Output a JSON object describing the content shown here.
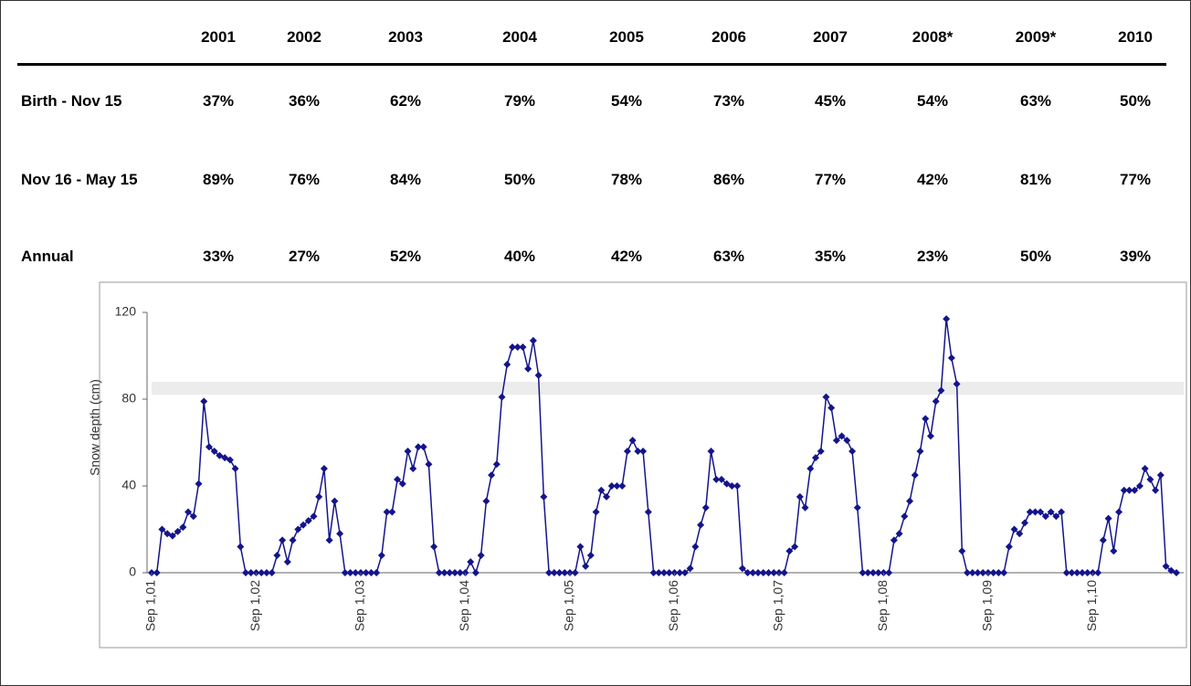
{
  "table": {
    "header": [
      "2001",
      "2002",
      "2003",
      "2004",
      "2005",
      "2006",
      "2007",
      "2008*",
      "2009*",
      "2010"
    ],
    "rows": [
      [
        "Birth - Nov 15",
        "37%",
        "36%",
        "62%",
        "79%",
        "54%",
        "73%",
        "45%",
        "54%",
        "63%",
        "50%"
      ],
      [
        "Nov 16 - May 15",
        "89%",
        "76%",
        "84%",
        "50%",
        "78%",
        "86%",
        "77%",
        "42%",
        "81%",
        "77%"
      ],
      [
        "Annual",
        "33%",
        "27%",
        "52%",
        "40%",
        "42%",
        "63%",
        "35%",
        "23%",
        "50%",
        "39%"
      ]
    ]
  },
  "chart_data": {
    "type": "line",
    "y_label": "Snow depth (cm)",
    "color": "#14148c",
    "ylim": [
      0,
      120
    ],
    "yticks": [
      0,
      40,
      80,
      120
    ],
    "band": [
      82,
      88
    ],
    "values": [
      0,
      0,
      20,
      18,
      17,
      19,
      21,
      28,
      26,
      41,
      79,
      58,
      56,
      54,
      53,
      52,
      48,
      12,
      0,
      0,
      0,
      0,
      0,
      0,
      8,
      15,
      5,
      15,
      20,
      22,
      24,
      26,
      35,
      48,
      15,
      33,
      18,
      0,
      0,
      0,
      0,
      0,
      0,
      0,
      8,
      28,
      28,
      43,
      41,
      56,
      48,
      58,
      58,
      50,
      12,
      0,
      0,
      0,
      0,
      0,
      0,
      5,
      0,
      8,
      33,
      45,
      50,
      81,
      96,
      104,
      104,
      104,
      94,
      107,
      91,
      35,
      0,
      0,
      0,
      0,
      0,
      0,
      12,
      3,
      8,
      28,
      38,
      35,
      40,
      40,
      40,
      56,
      61,
      56,
      56,
      28,
      0,
      0,
      0,
      0,
      0,
      0,
      0,
      2,
      12,
      22,
      30,
      56,
      43,
      43,
      41,
      40,
      40,
      2,
      0,
      0,
      0,
      0,
      0,
      0,
      0,
      0,
      10,
      12,
      35,
      30,
      48,
      53,
      56,
      81,
      76,
      61,
      63,
      61,
      56,
      30,
      0,
      0,
      0,
      0,
      0,
      0,
      15,
      18,
      26,
      33,
      45,
      56,
      71,
      63,
      79,
      84,
      117,
      99,
      87,
      10,
      0,
      0,
      0,
      0,
      0,
      0,
      0,
      0,
      12,
      20,
      18,
      23,
      28,
      28,
      28,
      26,
      28,
      26,
      28,
      0,
      0,
      0,
      0,
      0,
      0,
      0,
      15,
      25,
      10,
      28,
      38,
      38,
      38,
      40,
      48,
      43,
      38,
      45,
      3,
      1,
      0
    ],
    "categories": [
      "Sep 1,01",
      null,
      null,
      null,
      null,
      null,
      null,
      null,
      null,
      null,
      null,
      null,
      null,
      null,
      null,
      null,
      null,
      null,
      null,
      null,
      "Sep 1,02",
      null,
      null,
      null,
      null,
      null,
      null,
      null,
      null,
      null,
      null,
      null,
      null,
      null,
      null,
      null,
      null,
      null,
      null,
      null,
      "Sep 1,03",
      null,
      null,
      null,
      null,
      null,
      null,
      null,
      null,
      null,
      null,
      null,
      null,
      null,
      null,
      null,
      null,
      null,
      null,
      null,
      "Sep 1,04",
      null,
      null,
      null,
      null,
      null,
      null,
      null,
      null,
      null,
      null,
      null,
      null,
      null,
      null,
      null,
      null,
      null,
      null,
      null,
      "Sep 1,05",
      null,
      null,
      null,
      null,
      null,
      null,
      null,
      null,
      null,
      null,
      null,
      null,
      null,
      null,
      null,
      null,
      null,
      null,
      null,
      "Sep 1,06",
      null,
      null,
      null,
      null,
      null,
      null,
      null,
      null,
      null,
      null,
      null,
      null,
      null,
      null,
      null,
      null,
      null,
      null,
      null,
      "Sep 1,07",
      null,
      null,
      null,
      null,
      null,
      null,
      null,
      null,
      null,
      null,
      null,
      null,
      null,
      null,
      null,
      null,
      null,
      null,
      null,
      "Sep 1,08",
      null,
      null,
      null,
      null,
      null,
      null,
      null,
      null,
      null,
      null,
      null,
      null,
      null,
      null,
      null,
      null,
      null,
      null,
      null,
      "Sep 1,09",
      null,
      null,
      null,
      null,
      null,
      null,
      null,
      null,
      null,
      null,
      null,
      null,
      null,
      null,
      null,
      null,
      null,
      null,
      null,
      "Sep 1,10",
      null,
      null,
      null,
      null,
      null,
      null,
      null,
      null,
      null,
      null,
      null,
      null,
      null,
      null,
      null,
      null
    ]
  }
}
